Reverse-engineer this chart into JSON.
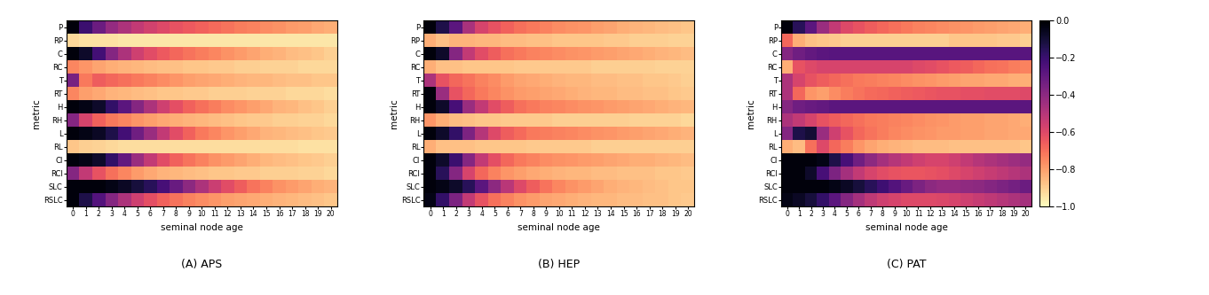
{
  "metrics": [
    "P",
    "RP",
    "C",
    "RC",
    "T",
    "RT",
    "H",
    "RH",
    "L",
    "RL",
    "CI",
    "RCI",
    "SLC",
    "RSLC"
  ],
  "ages": [
    0,
    1,
    2,
    3,
    4,
    5,
    6,
    7,
    8,
    9,
    10,
    11,
    12,
    13,
    14,
    15,
    16,
    17,
    18,
    19,
    20
  ],
  "titles": [
    "(A) APS",
    "(B) HEP",
    "(C) PAT"
  ],
  "xlabel": "seminal node age",
  "ylabel": "metric",
  "cmap": "magma_r",
  "vmin": -1.0,
  "vmax": 0.0,
  "colorbar_ticks": [
    -1.0,
    -0.8,
    -0.6,
    -0.4,
    -0.2,
    0.0
  ],
  "colorbar_labels": [
    "-1.0",
    "-0.8",
    "-0.6",
    "-0.4",
    "-0.2",
    "-0.0"
  ],
  "APS": [
    [
      -0.02,
      -0.2,
      -0.32,
      -0.42,
      -0.48,
      -0.53,
      -0.57,
      -0.6,
      -0.63,
      -0.65,
      -0.67,
      -0.69,
      -0.71,
      -0.73,
      -0.74,
      -0.76,
      -0.77,
      -0.79,
      -0.8,
      -0.82,
      -0.83
    ],
    [
      -0.92,
      -0.94,
      -0.94,
      -0.94,
      -0.95,
      -0.95,
      -0.95,
      -0.95,
      -0.95,
      -0.95,
      -0.95,
      -0.95,
      -0.95,
      -0.95,
      -0.95,
      -0.95,
      -0.95,
      -0.95,
      -0.95,
      -0.95,
      -0.95
    ],
    [
      -0.02,
      -0.08,
      -0.22,
      -0.38,
      -0.48,
      -0.56,
      -0.61,
      -0.65,
      -0.68,
      -0.71,
      -0.73,
      -0.75,
      -0.77,
      -0.79,
      -0.81,
      -0.83,
      -0.84,
      -0.86,
      -0.87,
      -0.88,
      -0.9
    ],
    [
      -0.75,
      -0.78,
      -0.81,
      -0.83,
      -0.84,
      -0.85,
      -0.86,
      -0.87,
      -0.87,
      -0.88,
      -0.88,
      -0.89,
      -0.89,
      -0.9,
      -0.9,
      -0.91,
      -0.91,
      -0.91,
      -0.92,
      -0.92,
      -0.92
    ],
    [
      -0.35,
      -0.72,
      -0.66,
      -0.68,
      -0.7,
      -0.72,
      -0.74,
      -0.76,
      -0.78,
      -0.8,
      -0.81,
      -0.82,
      -0.83,
      -0.84,
      -0.85,
      -0.85,
      -0.86,
      -0.87,
      -0.87,
      -0.88,
      -0.88
    ],
    [
      -0.75,
      -0.8,
      -0.82,
      -0.84,
      -0.85,
      -0.86,
      -0.87,
      -0.88,
      -0.88,
      -0.89,
      -0.89,
      -0.9,
      -0.9,
      -0.9,
      -0.91,
      -0.91,
      -0.91,
      -0.92,
      -0.92,
      -0.92,
      -0.93
    ],
    [
      -0.02,
      -0.04,
      -0.08,
      -0.18,
      -0.28,
      -0.38,
      -0.48,
      -0.56,
      -0.62,
      -0.67,
      -0.7,
      -0.73,
      -0.76,
      -0.78,
      -0.8,
      -0.82,
      -0.84,
      -0.85,
      -0.87,
      -0.88,
      -0.9
    ],
    [
      -0.38,
      -0.58,
      -0.67,
      -0.72,
      -0.75,
      -0.78,
      -0.8,
      -0.82,
      -0.83,
      -0.84,
      -0.85,
      -0.86,
      -0.87,
      -0.88,
      -0.89,
      -0.89,
      -0.9,
      -0.9,
      -0.91,
      -0.91,
      -0.92
    ],
    [
      -0.02,
      -0.04,
      -0.07,
      -0.13,
      -0.22,
      -0.33,
      -0.43,
      -0.53,
      -0.61,
      -0.67,
      -0.72,
      -0.75,
      -0.78,
      -0.8,
      -0.82,
      -0.84,
      -0.85,
      -0.86,
      -0.87,
      -0.88,
      -0.89
    ],
    [
      -0.88,
      -0.9,
      -0.91,
      -0.92,
      -0.93,
      -0.93,
      -0.93,
      -0.93,
      -0.93,
      -0.93,
      -0.93,
      -0.93,
      -0.93,
      -0.93,
      -0.93,
      -0.93,
      -0.93,
      -0.93,
      -0.94,
      -0.94,
      -0.94
    ],
    [
      -0.02,
      -0.04,
      -0.08,
      -0.18,
      -0.3,
      -0.43,
      -0.53,
      -0.61,
      -0.67,
      -0.71,
      -0.74,
      -0.77,
      -0.79,
      -0.81,
      -0.83,
      -0.85,
      -0.86,
      -0.87,
      -0.88,
      -0.89,
      -0.9
    ],
    [
      -0.38,
      -0.53,
      -0.63,
      -0.7,
      -0.75,
      -0.79,
      -0.82,
      -0.84,
      -0.85,
      -0.86,
      -0.87,
      -0.88,
      -0.88,
      -0.89,
      -0.89,
      -0.9,
      -0.9,
      -0.9,
      -0.91,
      -0.91,
      -0.92
    ],
    [
      -0.02,
      -0.02,
      -0.02,
      -0.04,
      -0.07,
      -0.11,
      -0.16,
      -0.23,
      -0.31,
      -0.4,
      -0.48,
      -0.55,
      -0.61,
      -0.66,
      -0.71,
      -0.74,
      -0.77,
      -0.79,
      -0.81,
      -0.83,
      -0.84
    ],
    [
      -0.02,
      -0.13,
      -0.26,
      -0.38,
      -0.48,
      -0.56,
      -0.62,
      -0.67,
      -0.71,
      -0.74,
      -0.76,
      -0.78,
      -0.8,
      -0.81,
      -0.82,
      -0.83,
      -0.84,
      -0.85,
      -0.86,
      -0.87,
      -0.88
    ]
  ],
  "HEP": [
    [
      -0.02,
      -0.13,
      -0.28,
      -0.47,
      -0.58,
      -0.63,
      -0.67,
      -0.7,
      -0.72,
      -0.74,
      -0.76,
      -0.77,
      -0.78,
      -0.8,
      -0.81,
      -0.83,
      -0.84,
      -0.85,
      -0.86,
      -0.87,
      -0.88
    ],
    [
      -0.83,
      -0.87,
      -0.84,
      -0.84,
      -0.85,
      -0.85,
      -0.86,
      -0.86,
      -0.87,
      -0.87,
      -0.88,
      -0.88,
      -0.88,
      -0.88,
      -0.89,
      -0.89,
      -0.9,
      -0.9,
      -0.9,
      -0.91,
      -0.91
    ],
    [
      -0.02,
      -0.08,
      -0.38,
      -0.53,
      -0.61,
      -0.66,
      -0.7,
      -0.72,
      -0.74,
      -0.75,
      -0.76,
      -0.77,
      -0.78,
      -0.79,
      -0.8,
      -0.81,
      -0.82,
      -0.83,
      -0.84,
      -0.85,
      -0.86
    ],
    [
      -0.83,
      -0.87,
      -0.87,
      -0.88,
      -0.88,
      -0.88,
      -0.88,
      -0.89,
      -0.89,
      -0.89,
      -0.89,
      -0.89,
      -0.89,
      -0.9,
      -0.9,
      -0.9,
      -0.9,
      -0.9,
      -0.91,
      -0.91,
      -0.91
    ],
    [
      -0.48,
      -0.63,
      -0.68,
      -0.71,
      -0.74,
      -0.76,
      -0.79,
      -0.81,
      -0.82,
      -0.83,
      -0.84,
      -0.85,
      -0.85,
      -0.86,
      -0.86,
      -0.87,
      -0.87,
      -0.88,
      -0.88,
      -0.89,
      -0.9
    ],
    [
      -0.02,
      -0.43,
      -0.63,
      -0.68,
      -0.72,
      -0.75,
      -0.77,
      -0.79,
      -0.8,
      -0.81,
      -0.82,
      -0.83,
      -0.84,
      -0.85,
      -0.85,
      -0.86,
      -0.86,
      -0.87,
      -0.87,
      -0.88,
      -0.89
    ],
    [
      -0.02,
      -0.08,
      -0.23,
      -0.43,
      -0.53,
      -0.61,
      -0.66,
      -0.7,
      -0.72,
      -0.74,
      -0.75,
      -0.76,
      -0.77,
      -0.78,
      -0.79,
      -0.8,
      -0.81,
      -0.82,
      -0.83,
      -0.84,
      -0.85
    ],
    [
      -0.78,
      -0.83,
      -0.86,
      -0.87,
      -0.88,
      -0.88,
      -0.89,
      -0.89,
      -0.89,
      -0.89,
      -0.9,
      -0.9,
      -0.9,
      -0.9,
      -0.9,
      -0.9,
      -0.91,
      -0.91,
      -0.91,
      -0.91,
      -0.92
    ],
    [
      -0.02,
      -0.08,
      -0.18,
      -0.36,
      -0.5,
      -0.6,
      -0.66,
      -0.69,
      -0.72,
      -0.73,
      -0.74,
      -0.75,
      -0.76,
      -0.77,
      -0.78,
      -0.79,
      -0.8,
      -0.81,
      -0.82,
      -0.83,
      -0.84
    ],
    [
      -0.83,
      -0.87,
      -0.87,
      -0.87,
      -0.88,
      -0.88,
      -0.88,
      -0.88,
      -0.89,
      -0.89,
      -0.89,
      -0.89,
      -0.89,
      -0.9,
      -0.9,
      -0.9,
      -0.9,
      -0.9,
      -0.9,
      -0.9,
      -0.9
    ],
    [
      -0.02,
      -0.08,
      -0.2,
      -0.38,
      -0.53,
      -0.62,
      -0.68,
      -0.72,
      -0.74,
      -0.76,
      -0.77,
      -0.78,
      -0.79,
      -0.8,
      -0.81,
      -0.82,
      -0.83,
      -0.83,
      -0.84,
      -0.85,
      -0.86
    ],
    [
      -0.02,
      -0.16,
      -0.38,
      -0.58,
      -0.68,
      -0.74,
      -0.78,
      -0.8,
      -0.82,
      -0.83,
      -0.84,
      -0.85,
      -0.85,
      -0.86,
      -0.86,
      -0.87,
      -0.87,
      -0.87,
      -0.88,
      -0.88,
      -0.89
    ],
    [
      -0.02,
      -0.04,
      -0.08,
      -0.16,
      -0.28,
      -0.4,
      -0.51,
      -0.6,
      -0.66,
      -0.71,
      -0.75,
      -0.77,
      -0.79,
      -0.81,
      -0.83,
      -0.84,
      -0.85,
      -0.86,
      -0.87,
      -0.88,
      -0.88
    ],
    [
      -0.04,
      -0.18,
      -0.36,
      -0.53,
      -0.63,
      -0.7,
      -0.74,
      -0.77,
      -0.79,
      -0.81,
      -0.82,
      -0.83,
      -0.84,
      -0.85,
      -0.85,
      -0.86,
      -0.86,
      -0.87,
      -0.87,
      -0.88,
      -0.89
    ]
  ],
  "PAT": [
    [
      -0.02,
      -0.16,
      -0.28,
      -0.43,
      -0.53,
      -0.6,
      -0.63,
      -0.66,
      -0.68,
      -0.7,
      -0.72,
      -0.74,
      -0.75,
      -0.76,
      -0.77,
      -0.78,
      -0.79,
      -0.8,
      -0.81,
      -0.82,
      -0.83
    ],
    [
      -0.68,
      -0.83,
      -0.87,
      -0.88,
      -0.89,
      -0.9,
      -0.9,
      -0.9,
      -0.9,
      -0.9,
      -0.9,
      -0.9,
      -0.9,
      -0.9,
      -0.88,
      -0.88,
      -0.88,
      -0.88,
      -0.89,
      -0.89,
      -0.9
    ],
    [
      -0.38,
      -0.33,
      -0.3,
      -0.28,
      -0.27,
      -0.27,
      -0.27,
      -0.27,
      -0.27,
      -0.27,
      -0.27,
      -0.27,
      -0.27,
      -0.27,
      -0.27,
      -0.27,
      -0.27,
      -0.27,
      -0.27,
      -0.27,
      -0.27
    ],
    [
      -0.83,
      -0.63,
      -0.6,
      -0.58,
      -0.58,
      -0.58,
      -0.58,
      -0.58,
      -0.58,
      -0.58,
      -0.58,
      -0.6,
      -0.61,
      -0.63,
      -0.65,
      -0.66,
      -0.68,
      -0.7,
      -0.71,
      -0.73,
      -0.74
    ],
    [
      -0.48,
      -0.58,
      -0.63,
      -0.66,
      -0.68,
      -0.7,
      -0.72,
      -0.73,
      -0.74,
      -0.75,
      -0.76,
      -0.77,
      -0.78,
      -0.79,
      -0.8,
      -0.81,
      -0.81,
      -0.82,
      -0.82,
      -0.83,
      -0.83
    ],
    [
      -0.48,
      -0.68,
      -0.78,
      -0.8,
      -0.76,
      -0.73,
      -0.71,
      -0.69,
      -0.68,
      -0.67,
      -0.66,
      -0.65,
      -0.64,
      -0.63,
      -0.63,
      -0.62,
      -0.62,
      -0.61,
      -0.61,
      -0.61,
      -0.6
    ],
    [
      -0.38,
      -0.33,
      -0.31,
      -0.3,
      -0.28,
      -0.28,
      -0.28,
      -0.28,
      -0.28,
      -0.28,
      -0.28,
      -0.28,
      -0.28,
      -0.28,
      -0.28,
      -0.28,
      -0.28,
      -0.28,
      -0.28,
      -0.28,
      -0.28
    ],
    [
      -0.48,
      -0.53,
      -0.58,
      -0.63,
      -0.66,
      -0.68,
      -0.7,
      -0.72,
      -0.73,
      -0.74,
      -0.75,
      -0.76,
      -0.77,
      -0.78,
      -0.79,
      -0.8,
      -0.8,
      -0.81,
      -0.81,
      -0.82,
      -0.83
    ],
    [
      -0.38,
      -0.13,
      -0.1,
      -0.43,
      -0.56,
      -0.63,
      -0.68,
      -0.71,
      -0.73,
      -0.75,
      -0.76,
      -0.77,
      -0.78,
      -0.79,
      -0.79,
      -0.8,
      -0.8,
      -0.81,
      -0.81,
      -0.82,
      -0.82
    ],
    [
      -0.83,
      -0.86,
      -0.7,
      -0.6,
      -0.68,
      -0.73,
      -0.78,
      -0.81,
      -0.83,
      -0.84,
      -0.85,
      -0.86,
      -0.86,
      -0.86,
      -0.87,
      -0.87,
      -0.87,
      -0.87,
      -0.87,
      -0.87,
      -0.88
    ],
    [
      -0.02,
      -0.02,
      -0.02,
      -0.04,
      -0.13,
      -0.23,
      -0.33,
      -0.4,
      -0.46,
      -0.5,
      -0.53,
      -0.56,
      -0.58,
      -0.58,
      -0.56,
      -0.53,
      -0.5,
      -0.48,
      -0.46,
      -0.44,
      -0.42
    ],
    [
      -0.02,
      -0.02,
      -0.08,
      -0.23,
      -0.36,
      -0.46,
      -0.53,
      -0.58,
      -0.61,
      -0.63,
      -0.64,
      -0.64,
      -0.63,
      -0.62,
      -0.6,
      -0.58,
      -0.56,
      -0.54,
      -0.52,
      -0.5,
      -0.48
    ],
    [
      -0.02,
      -0.02,
      -0.02,
      -0.02,
      -0.04,
      -0.07,
      -0.11,
      -0.16,
      -0.21,
      -0.26,
      -0.31,
      -0.36,
      -0.4,
      -0.42,
      -0.42,
      -0.41,
      -0.4,
      -0.38,
      -0.36,
      -0.34,
      -0.32
    ],
    [
      -0.04,
      -0.07,
      -0.11,
      -0.18,
      -0.28,
      -0.38,
      -0.46,
      -0.52,
      -0.56,
      -0.58,
      -0.6,
      -0.6,
      -0.6,
      -0.59,
      -0.58,
      -0.56,
      -0.54,
      -0.52,
      -0.5,
      -0.48,
      -0.46
    ]
  ]
}
